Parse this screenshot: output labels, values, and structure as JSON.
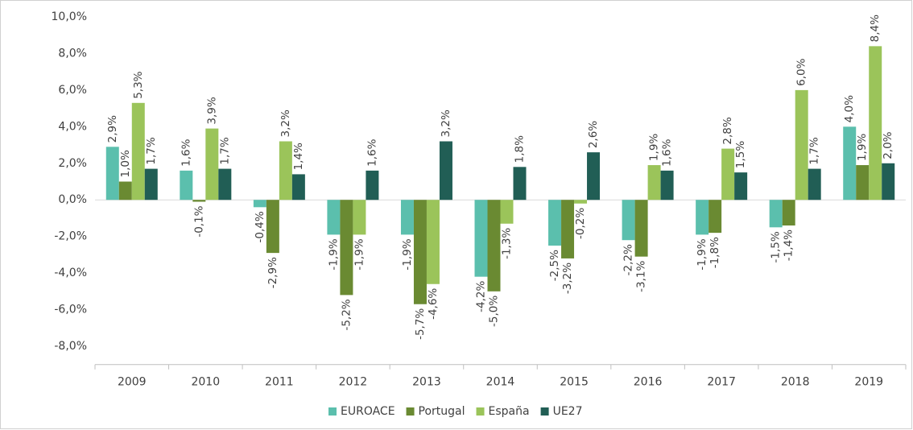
{
  "chart_data": {
    "type": "bar",
    "categories": [
      "2009",
      "2010",
      "2011",
      "2012",
      "2013",
      "2014",
      "2015",
      "2016",
      "2017",
      "2018",
      "2019"
    ],
    "series": [
      {
        "name": "EUROACE",
        "color": "#5bbfad",
        "values": [
          2.9,
          1.6,
          -0.4,
          -1.9,
          -1.9,
          -4.2,
          -2.5,
          -2.2,
          -1.9,
          -1.5,
          4.0
        ],
        "value_labels": [
          "2,9%",
          "1,6%",
          "-0,4%",
          "-1,9%",
          "-1,9%",
          "-4,2%",
          "-2,5%",
          "-2,2%",
          "-1,9%",
          "-1,5%",
          "4,0%"
        ]
      },
      {
        "name": "Portugal",
        "color": "#6a8a32",
        "values": [
          1.0,
          -0.1,
          -2.9,
          -5.2,
          -5.7,
          -5.0,
          -3.2,
          -3.1,
          -1.8,
          -1.4,
          1.9
        ],
        "value_labels": [
          "1,0%",
          "-0,1%",
          "-2,9%",
          "-5,2%",
          "-5,7%",
          "-5,0%",
          "-3,2%",
          "-3,1%",
          "-1,8%",
          "-1,4%",
          "1,9%"
        ]
      },
      {
        "name": "España",
        "color": "#9bc45a",
        "values": [
          5.3,
          3.9,
          3.2,
          -1.9,
          -4.6,
          -1.3,
          -0.2,
          1.9,
          2.8,
          6.0,
          8.4
        ],
        "value_labels": [
          "5,3%",
          "3,9%",
          "3,2%",
          "-1,9%",
          "-4,6%",
          "-1,3%",
          "-0,2%",
          "1,9%",
          "2,8%",
          "6,0%",
          "8,4%"
        ]
      },
      {
        "name": "UE27",
        "color": "#215e55",
        "values": [
          1.7,
          1.7,
          1.4,
          1.6,
          3.2,
          1.8,
          2.6,
          1.6,
          1.5,
          1.7,
          2.0
        ],
        "value_labels": [
          "1,7%",
          "1,7%",
          "1,4%",
          "1,6%",
          "3,2%",
          "1,8%",
          "2,6%",
          "1,6%",
          "1,5%",
          "1,7%",
          "2,0%"
        ]
      }
    ],
    "ylim": [
      -9,
      10
    ],
    "yticks": [
      {
        "value": 10,
        "label": "10,0%"
      },
      {
        "value": 8,
        "label": "8,0%"
      },
      {
        "value": 6,
        "label": "6,0%"
      },
      {
        "value": 4,
        "label": "4,0%"
      },
      {
        "value": 2,
        "label": "2,0%"
      },
      {
        "value": 0,
        "label": "0,0%"
      },
      {
        "value": -2,
        "label": "-2,0%"
      },
      {
        "value": -4,
        "label": "-4,0%"
      },
      {
        "value": -6,
        "label": "-6,0%"
      },
      {
        "value": -8,
        "label": "-8,0%"
      }
    ],
    "grid": false,
    "legend": "bottom"
  }
}
